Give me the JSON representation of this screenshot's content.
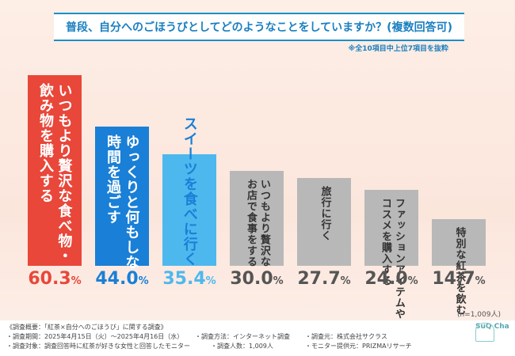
{
  "chart_data": {
    "type": "bar",
    "title": "普段、自分へのごほうびとしてどのようなことをしていますか？(複数回答可)",
    "note": "※全10項目中上位7項目を抜粋",
    "categories": [
      "いつもより贅沢な食べ物・飲み物を購入する",
      "ゆっくりと何もしない時間を過ごす",
      "スイーツを食べに行く",
      "いつもより贅沢なお店で食事をする",
      "旅行に行く",
      "ファッションアイテムやコスメを購入する",
      "特別な紅茶を飲む"
    ],
    "label_lines": [
      [
        "いつもより贅沢な食べ物・",
        "飲み物を購入する"
      ],
      [
        "ゆっくりと何もしない",
        "時間を過ごす"
      ],
      [
        "スイーツを食べに行く"
      ],
      [
        "いつもより贅沢な",
        "お店で食事をする"
      ],
      [
        "旅行に行く"
      ],
      [
        "ファッションアイテムや",
        "コスメを購入する"
      ],
      [
        "特別な紅茶を飲む"
      ]
    ],
    "values": [
      60.3,
      44.0,
      35.4,
      30.0,
      27.7,
      24.0,
      14.7
    ],
    "value_labels": [
      "60.3",
      "44.0",
      "35.4",
      "30.0",
      "27.7",
      "24.0",
      "14.7"
    ],
    "unit": "%",
    "ylim": [
      0,
      65
    ],
    "bar_colors": [
      "#e8473a",
      "#1a7fd6",
      "#4db8ee",
      "#b8b8b8",
      "#b8b8b8",
      "#b8b8b8",
      "#b8b8b8"
    ],
    "label_colors": [
      "#ffffff",
      "#ffffff",
      "#1a7fd6",
      "#333333",
      "#333333",
      "#333333",
      "#333333"
    ],
    "value_colors": [
      "#e8473a",
      "#1a7fd6",
      "#4db8ee",
      "#555555",
      "#555555",
      "#555555",
      "#555555"
    ],
    "sample": "(n=1,009人)"
  },
  "footer": {
    "heading": "《調査概要：「紅茶×自分へのごほうび」に関する調査》",
    "period": "・調査期間：2025年4月15日（火）～2025年4月16日（水）",
    "method": "・調査方法：インターネット調査",
    "source": "・調査元：株式会社サクラス",
    "target": "・調査対象：調査回答時に紅茶が好きな女性と回答したモニター",
    "count": "・調査人数：1,009人",
    "provider": "・モニター提供元：PRIZMAリサーチ",
    "logo": "SuQ Cha"
  }
}
